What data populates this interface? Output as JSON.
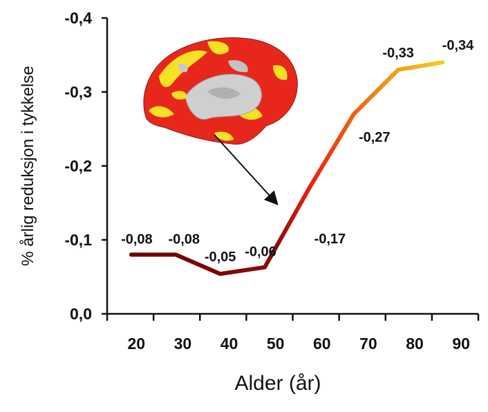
{
  "chart_data": {
    "type": "line",
    "title": "",
    "xlabel": "Alder (år)",
    "ylabel": "% årlig reduksjon i tykkelse",
    "x": [
      17,
      27,
      37,
      47,
      57,
      67,
      77,
      87
    ],
    "values": [
      -0.08,
      -0.08,
      -0.054,
      -0.063,
      -0.17,
      -0.27,
      -0.33,
      -0.34
    ],
    "data_labels": [
      "-0,08",
      "-0,08",
      "-0,05",
      "-0,06",
      "-0,17",
      "-0,27",
      "-0,33",
      "-0,34"
    ],
    "x_ticks": [
      20,
      30,
      40,
      50,
      60,
      70,
      80,
      90
    ],
    "x_tick_labels": [
      "20",
      "30",
      "40",
      "50",
      "60",
      "70",
      "80",
      "90"
    ],
    "y_ticks": [
      0,
      -0.1,
      -0.2,
      -0.3,
      -0.4
    ],
    "y_tick_labels": [
      "0,0",
      "-0,1",
      "-0,2",
      "-0,3",
      "-0,4"
    ],
    "xlim": [
      15,
      95
    ],
    "ylim": [
      0,
      -0.4
    ],
    "y_axis_inverted": true,
    "grid": false,
    "legend": "none",
    "line_gradient_colors": [
      "#6b0000",
      "#8b0a0a",
      "#e8200f",
      "#f49a18",
      "#f6e21d"
    ],
    "inset": {
      "image": "lateral brain surface heat map (red/yellow) with arrow pointing to the curve near age 52",
      "colors": [
        "#e8271c",
        "#f6e225",
        "#c9c9c9"
      ]
    }
  }
}
